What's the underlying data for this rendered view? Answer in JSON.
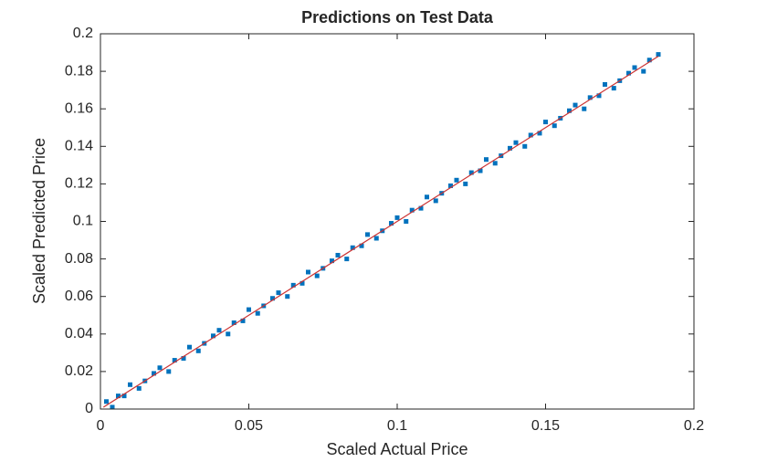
{
  "chart_data": {
    "type": "scatter",
    "title": "Predictions on Test Data",
    "xlabel": "Scaled Actual Price",
    "ylabel": "Scaled Predicted Price",
    "xlim": [
      0,
      0.2
    ],
    "ylim": [
      0,
      0.2
    ],
    "xticks": [
      0,
      0.05,
      0.1,
      0.15,
      0.2
    ],
    "yticks": [
      0,
      0.02,
      0.04,
      0.06,
      0.08,
      0.1,
      0.12,
      0.14,
      0.16,
      0.18,
      0.2
    ],
    "grid": false,
    "series": [
      {
        "type": "scatter",
        "color": "#0072bd",
        "x": [
          0.002,
          0.004,
          0.006,
          0.008,
          0.01,
          0.013,
          0.015,
          0.018,
          0.02,
          0.023,
          0.025,
          0.028,
          0.03,
          0.033,
          0.035,
          0.038,
          0.04,
          0.043,
          0.045,
          0.048,
          0.05,
          0.053,
          0.055,
          0.058,
          0.06,
          0.063,
          0.065,
          0.068,
          0.07,
          0.073,
          0.075,
          0.078,
          0.08,
          0.083,
          0.085,
          0.088,
          0.09,
          0.093,
          0.095,
          0.098,
          0.1,
          0.103,
          0.105,
          0.108,
          0.11,
          0.113,
          0.115,
          0.118,
          0.12,
          0.123,
          0.125,
          0.128,
          0.13,
          0.133,
          0.135,
          0.138,
          0.14,
          0.143,
          0.145,
          0.148,
          0.15,
          0.153,
          0.155,
          0.158,
          0.16,
          0.163,
          0.165,
          0.168,
          0.17,
          0.173,
          0.175,
          0.178,
          0.18,
          0.183,
          0.185,
          0.188
        ],
        "values": [
          0.004,
          0.001,
          0.007,
          0.007,
          0.013,
          0.011,
          0.015,
          0.019,
          0.022,
          0.02,
          0.026,
          0.027,
          0.033,
          0.031,
          0.035,
          0.039,
          0.042,
          0.04,
          0.046,
          0.047,
          0.053,
          0.051,
          0.055,
          0.059,
          0.062,
          0.06,
          0.066,
          0.067,
          0.073,
          0.071,
          0.075,
          0.079,
          0.082,
          0.08,
          0.086,
          0.087,
          0.093,
          0.091,
          0.095,
          0.099,
          0.102,
          0.1,
          0.106,
          0.107,
          0.113,
          0.111,
          0.115,
          0.119,
          0.122,
          0.12,
          0.126,
          0.127,
          0.133,
          0.131,
          0.135,
          0.139,
          0.142,
          0.14,
          0.146,
          0.147,
          0.153,
          0.151,
          0.155,
          0.159,
          0.162,
          0.16,
          0.166,
          0.167,
          0.173,
          0.171,
          0.175,
          0.179,
          0.182,
          0.18,
          0.186,
          0.189
        ]
      },
      {
        "type": "line",
        "color": "#cc3333",
        "x": [
          0.001,
          0.188
        ],
        "values": [
          0.001,
          0.188
        ]
      }
    ]
  }
}
